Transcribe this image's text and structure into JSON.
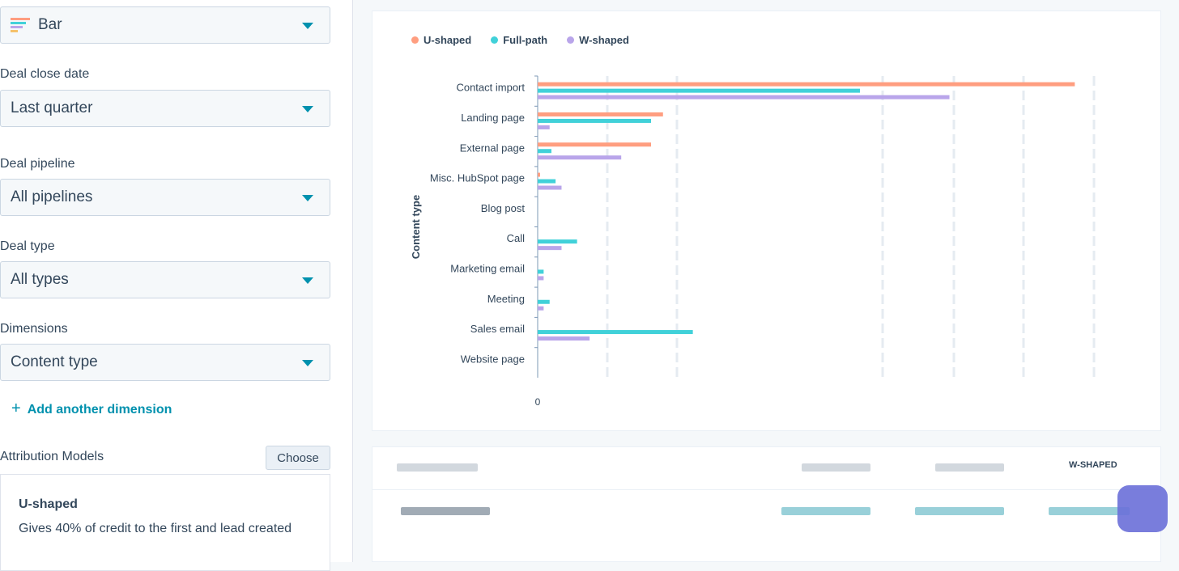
{
  "sidebar": {
    "chart_type": {
      "value": "Bar",
      "icon": "bar-chart-icon"
    },
    "filters": [
      {
        "label": "Deal close date",
        "value": "Last quarter"
      },
      {
        "label": "Deal pipeline",
        "value": "All pipelines"
      },
      {
        "label": "Deal type",
        "value": "All types"
      },
      {
        "label": "Dimensions",
        "value": "Content type"
      }
    ],
    "add_dimension": "Add another dimension",
    "attribution_label": "Attribution Models",
    "choose_label": "Choose",
    "model": {
      "name": "U-shaped",
      "description": "Gives 40% of credit to the first and lead created"
    }
  },
  "table": {
    "last_header": "W-SHAPED"
  },
  "chart_data": {
    "type": "bar",
    "orientation": "horizontal",
    "ylabel": "Content type",
    "x_zero_label": "0",
    "categories": [
      "Contact import",
      "Landing page",
      "External page",
      "Misc. HubSpot page",
      "Blog post",
      "Call",
      "Marketing email",
      "Meeting",
      "Sales email",
      "Website page"
    ],
    "series": [
      {
        "name": "U-shaped",
        "color": "#ff9e80",
        "values": [
          90,
          21,
          19,
          0.4,
          0,
          0,
          0,
          0,
          0,
          0
        ]
      },
      {
        "name": "Full-path",
        "color": "#41d1d9",
        "values": [
          54,
          19,
          2.3,
          3,
          0,
          6.6,
          1,
          2,
          26,
          0
        ]
      },
      {
        "name": "W-shaped",
        "color": "#b9a5ea",
        "values": [
          69,
          2,
          14,
          4,
          0,
          4,
          1,
          1,
          8.7,
          0
        ]
      }
    ],
    "xlim": [
      0,
      100
    ],
    "legend": "top-left"
  }
}
